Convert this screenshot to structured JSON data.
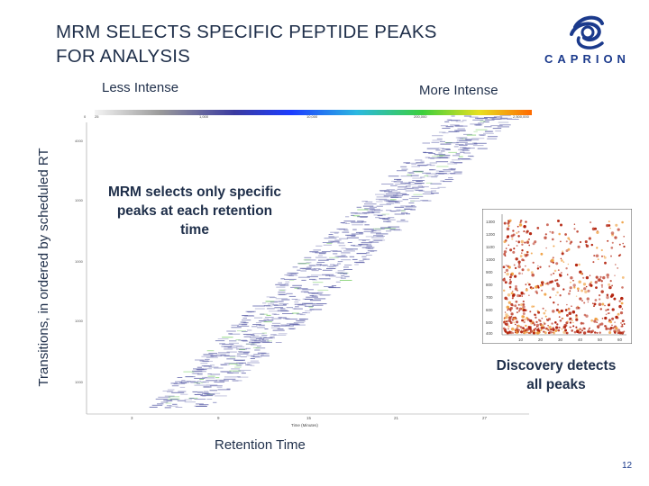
{
  "slide": {
    "title_lines": [
      "MRM SELECTS SPECIFIC PEPTIDE PEAKS",
      "FOR ANALYSIS"
    ],
    "logo_text": "CAPRION",
    "less_intense": "Less Intense",
    "more_intense": "More Intense",
    "y_label": "Transitions, in ordered by scheduled RT",
    "x_label": "Retention Time",
    "callout": "MRM selects only specific peaks at each retention time",
    "discovery": "Discovery detects all peaks",
    "page_number": "12"
  },
  "colors": {
    "title": "#1f2f4a",
    "logo": "#1b3a8c",
    "mrm_dots": "#5b5fa8",
    "mrm_highlight": "#7cd06a",
    "inset_dots": "#b2200a"
  },
  "main_plot": {
    "colorbar_ticks": [
      "0",
      "25",
      "1,000",
      "10,000",
      "200,000",
      "2,500,000"
    ],
    "y_ticks": [
      "4000",
      "1000",
      "1000",
      "1000",
      "1000"
    ],
    "x_ticks": [
      "3",
      "9",
      "15",
      "21",
      "27"
    ],
    "x_title": "Time (Minutes)"
  },
  "inset_plot": {
    "y_ticks": [
      "1300",
      "1200",
      "1100",
      "1000",
      "900",
      "800",
      "700",
      "600",
      "500",
      "400"
    ],
    "x_ticks": [
      "10",
      "20",
      "30",
      "40",
      "50",
      "60"
    ]
  }
}
